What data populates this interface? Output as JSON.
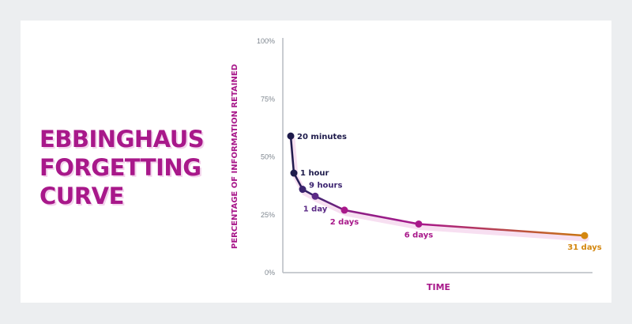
{
  "title_lines": [
    "EBBINGHAUS",
    "FORGETTING",
    "CURVE"
  ],
  "colors": {
    "background": "#eceef0",
    "card": "#ffffff",
    "title": "#a8188a",
    "axis": "#b7bcc2",
    "dark_point": "#1e1b4b",
    "mid_point": "#5b2a86",
    "magenta_point": "#a8188a",
    "orange_point": "#d4870f"
  },
  "chart_data": {
    "type": "line",
    "title": "EBBINGHAUS FORGETTING CURVE",
    "xlabel": "TIME",
    "ylabel": "PERCENTAGE OF INFORMATION RETAINED",
    "ylim": [
      0,
      100
    ],
    "y_ticks": [
      "100%",
      "75%",
      "50%",
      "25%",
      "0%"
    ],
    "y_tick_values": [
      100,
      75,
      50,
      25,
      0
    ],
    "x_unit": "days",
    "xlim": [
      0,
      32
    ],
    "points": [
      {
        "label": "20 minutes",
        "t": 0.0139,
        "value": 59,
        "color": "#1e1b4b"
      },
      {
        "label": "1 hour",
        "t": 0.0417,
        "value": 43,
        "color": "#1e1b4b"
      },
      {
        "label": "9 hours",
        "t": 0.375,
        "value": 36,
        "color": "#3c2470"
      },
      {
        "label": "1 day",
        "t": 1,
        "value": 33,
        "color": "#5b2a86"
      },
      {
        "label": "2 days",
        "t": 2,
        "value": 27,
        "color": "#a8188a"
      },
      {
        "label": "6 days",
        "t": 6,
        "value": 21,
        "color": "#a8188a"
      },
      {
        "label": "31 days",
        "t": 31,
        "value": 16,
        "color": "#d4870f"
      }
    ]
  }
}
